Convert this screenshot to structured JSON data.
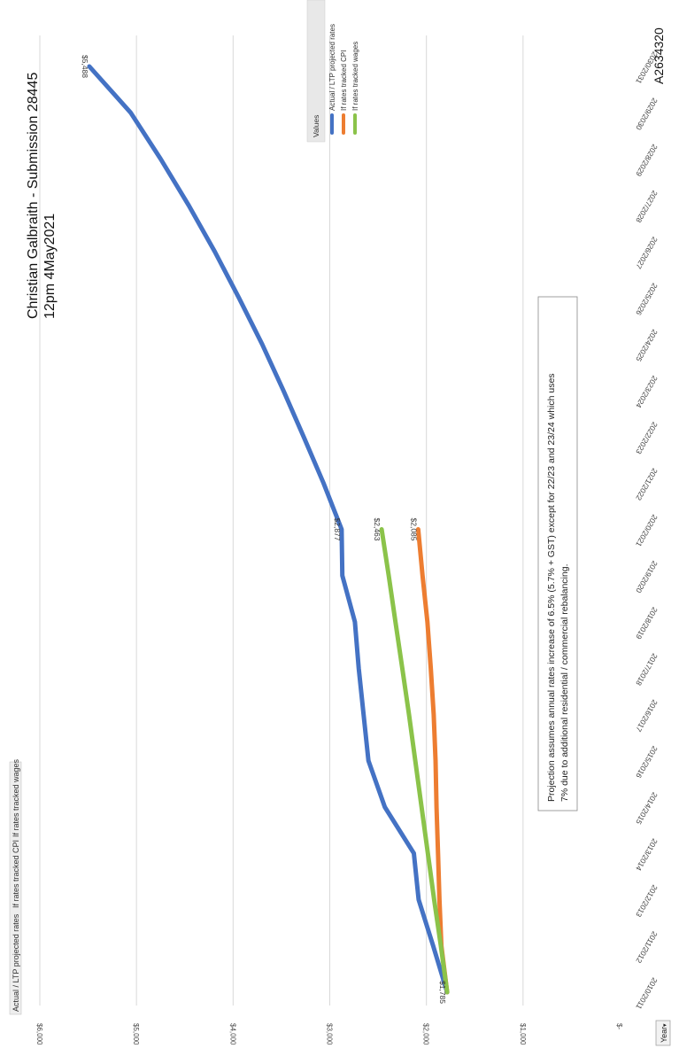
{
  "header": {
    "title": "Christian Galbraith - Submission 28445",
    "subtitle": "12pm 4May2021",
    "doc_id": "A2634320"
  },
  "field_buttons": {
    "top_tags": [
      "Actual / LTP projected rates",
      "If rates tracked CPI",
      "If rates tracked wages"
    ],
    "axis_button": "Year"
  },
  "legend": {
    "header": "Values",
    "items": [
      {
        "label": "Actual / LTP projected rates",
        "color": "#4472c4"
      },
      {
        "label": "If rates tracked CPI",
        "color": "#ed7d31"
      },
      {
        "label": "If rates tracked wages",
        "color": "#8bc34a"
      }
    ]
  },
  "note": {
    "line1": "Projection assumes annual rates increase of 6.5% (5.7% + GST) except for 22/23 and 23/24 which uses",
    "line2": "7% due to additional residential / commercial rebalancing."
  },
  "chart_data": {
    "type": "line",
    "categories": [
      "2010/2011",
      "2011/2012",
      "2012/2013",
      "2013/2014",
      "2014/2015",
      "2015/2016",
      "2016/2017",
      "2017/2018",
      "2018/2019",
      "2019/2020",
      "2020/2021",
      "2021/2022",
      "2022/2023",
      "2023/2024",
      "2024/2025",
      "2025/2026",
      "2026/2027",
      "2027/2028",
      "2028/2029",
      "2029/2030",
      "2030/2031"
    ],
    "ylim": [
      0,
      6000
    ],
    "yticks": [
      "$-",
      "$1,000",
      "$2,000",
      "$3,000",
      "$4,000",
      "$5,000",
      "$6,000"
    ],
    "series": [
      {
        "name": "Actual / LTP projected rates",
        "color": "#4472c4",
        "values": [
          1785,
          1930,
          2080,
          2130,
          2430,
          2600,
          2650,
          2700,
          2740,
          2870,
          2877,
          3065,
          3270,
          3480,
          3700,
          3940,
          4190,
          4460,
          4750,
          5060,
          5488
        ]
      },
      {
        "name": "If rates tracked CPI",
        "color": "#ed7d31",
        "values": [
          1785,
          1845,
          1865,
          1880,
          1895,
          1905,
          1925,
          1955,
          1990,
          2040,
          2085,
          null,
          null,
          null,
          null,
          null,
          null,
          null,
          null,
          null,
          null
        ]
      },
      {
        "name": "If rates tracked wages",
        "color": "#8bc34a",
        "values": [
          1785,
          1850,
          1920,
          1985,
          2050,
          2115,
          2180,
          2250,
          2320,
          2390,
          2463,
          null,
          null,
          null,
          null,
          null,
          null,
          null,
          null,
          null,
          null
        ]
      }
    ],
    "data_labels": [
      {
        "series": 0,
        "index": 0,
        "text": "$1,785"
      },
      {
        "series": 0,
        "index": 10,
        "text": "$2,877"
      },
      {
        "series": 2,
        "index": 10,
        "text": "$2,463"
      },
      {
        "series": 1,
        "index": 10,
        "text": "$2,085"
      },
      {
        "series": 0,
        "index": 20,
        "text": "$5,488"
      }
    ],
    "grid": true,
    "legend_position": "top-right"
  }
}
